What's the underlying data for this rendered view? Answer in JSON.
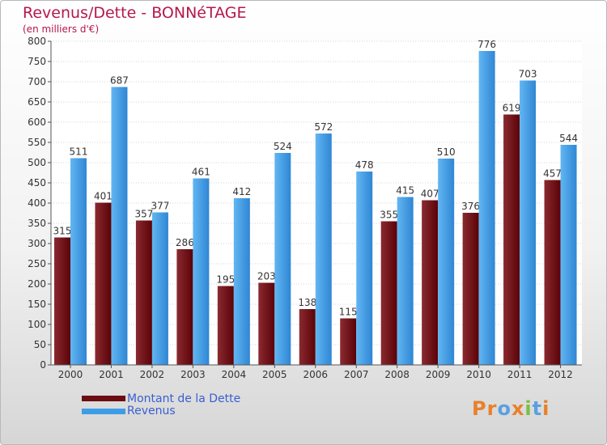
{
  "title": "Revenus/Dette - BONNéTAGE",
  "subtitle": "(en milliers d'€)",
  "legend": [
    {
      "label": "Montant de la Dette",
      "color": "#6b0d13"
    },
    {
      "label": "Revenus",
      "color": "#3d9de6"
    }
  ],
  "logo": {
    "text": "Proxiti",
    "letters": [
      "P",
      "r",
      "o",
      "x",
      "i",
      "t",
      "i"
    ],
    "colors": [
      "#e8812a",
      "#e8812a",
      "#5aa0e0",
      "#e8812a",
      "#7bbf45",
      "#5aa0e0",
      "#e8812a"
    ]
  },
  "chart_data": {
    "type": "bar",
    "categories": [
      "2000",
      "2001",
      "2002",
      "2003",
      "2004",
      "2005",
      "2006",
      "2007",
      "2008",
      "2009",
      "2010",
      "2011",
      "2012"
    ],
    "series": [
      {
        "name": "Montant de la Dette",
        "color": "#6b0d13",
        "values": [
          315,
          401,
          357,
          286,
          195,
          203,
          138,
          115,
          355,
          407,
          376,
          619,
          457
        ]
      },
      {
        "name": "Revenus",
        "color": "#3d9de6",
        "values": [
          511,
          687,
          377,
          461,
          412,
          524,
          572,
          478,
          415,
          510,
          776,
          703,
          544
        ]
      }
    ],
    "ylim": [
      0,
      800
    ],
    "yticks": [
      0,
      50,
      100,
      150,
      200,
      250,
      300,
      350,
      400,
      450,
      500,
      550,
      600,
      650,
      700,
      750,
      800
    ],
    "grid": true
  }
}
